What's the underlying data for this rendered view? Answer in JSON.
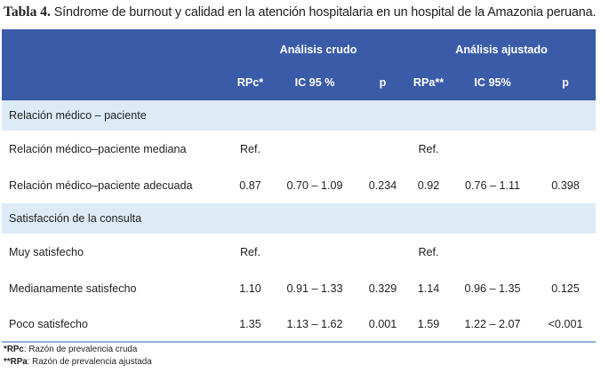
{
  "caption": {
    "label": "Tabla 4.",
    "text": "Síndrome de burnout y calidad en la atención hospitalaria en un hospital de la Amazonia peruana."
  },
  "header": {
    "group_crude": "Análisis crudo",
    "group_adjusted": "Análisis ajustado",
    "columns": [
      "",
      "RPc*",
      "IC 95 %",
      "p",
      "RPa**",
      "IC 95%",
      "p"
    ]
  },
  "sections": [
    {
      "title": "Relación médico – paciente",
      "rows": [
        {
          "label": "Relación médico–paciente mediana",
          "rpc": "Ref.",
          "ic_c": "",
          "p_c": "",
          "rpa": "Ref.",
          "ic_a": "",
          "p_a": ""
        },
        {
          "label": "Relación médico–paciente adecuada",
          "rpc": "0.87",
          "ic_c": "0.70 – 1.09",
          "p_c": "0.234",
          "rpa": "0.92",
          "ic_a": "0.76 – 1.11",
          "p_a": "0.398"
        }
      ]
    },
    {
      "title": "Satisfacción de la consulta",
      "rows": [
        {
          "label": "Muy satisfecho",
          "rpc": "Ref.",
          "ic_c": "",
          "p_c": "",
          "rpa": "Ref.",
          "ic_a": "",
          "p_a": ""
        },
        {
          "label": "Medianamente satisfecho",
          "rpc": "1.10",
          "ic_c": "0.91 – 1.33",
          "p_c": "0.329",
          "rpa": "1.14",
          "ic_a": "0.96 – 1.35",
          "p_a": "0.125"
        },
        {
          "label": "Poco satisfecho",
          "rpc": "1.35",
          "ic_c": "1.13 – 1.62",
          "p_c": "0.001",
          "rpa": "1.59",
          "ic_a": "1.22 – 2.07",
          "p_a": "<0.001"
        }
      ]
    }
  ],
  "footnotes": [
    {
      "key": "*RPc",
      "text": ": Razón de prevalencia cruda"
    },
    {
      "key": "**RPa",
      "text": ": Razón de prevalencia ajustada"
    }
  ],
  "colors": {
    "header_bg": "#3a5ba8",
    "section_bg": "#dcebf6",
    "rule": "#8fb3dc"
  }
}
